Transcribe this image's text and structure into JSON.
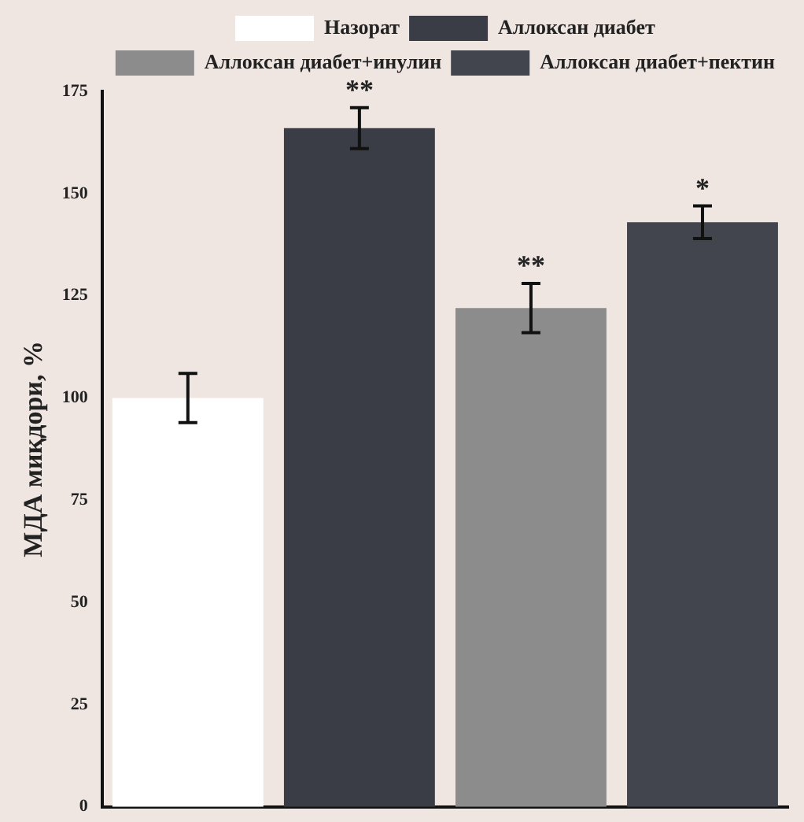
{
  "chart_data": {
    "type": "bar",
    "ylabel": "МДА миқдори, %",
    "categories": [
      null,
      null,
      null,
      null
    ],
    "series": [
      {
        "name": "Назорат",
        "color": "#ffffff",
        "values": [
          100,
          null,
          null,
          null
        ],
        "errors": [
          6,
          null,
          null,
          null
        ]
      },
      {
        "name": "Аллоксан диабет",
        "color": "#3a3d45",
        "values": [
          null,
          166,
          null,
          null
        ],
        "errors": [
          null,
          5,
          null,
          null
        ],
        "value_labels": [
          null,
          "**",
          null,
          null
        ]
      },
      {
        "name": "Аллоксан диабет+инулин",
        "color": "#8c8c8c",
        "values": [
          null,
          null,
          122,
          null
        ],
        "errors": [
          null,
          null,
          6,
          null
        ],
        "value_labels": [
          null,
          null,
          "**",
          null
        ]
      },
      {
        "name": "Аллоксан диабет+пектин",
        "color": "#42454d",
        "values": [
          null,
          null,
          null,
          143
        ],
        "errors": [
          null,
          null,
          null,
          4
        ],
        "value_labels": [
          null,
          null,
          null,
          "*"
        ]
      }
    ],
    "ylim": [
      0,
      175
    ],
    "yticks": [
      0,
      25,
      50,
      75,
      100,
      125,
      150,
      175
    ],
    "grid": false,
    "legend": "top",
    "tick_labels": "y"
  }
}
